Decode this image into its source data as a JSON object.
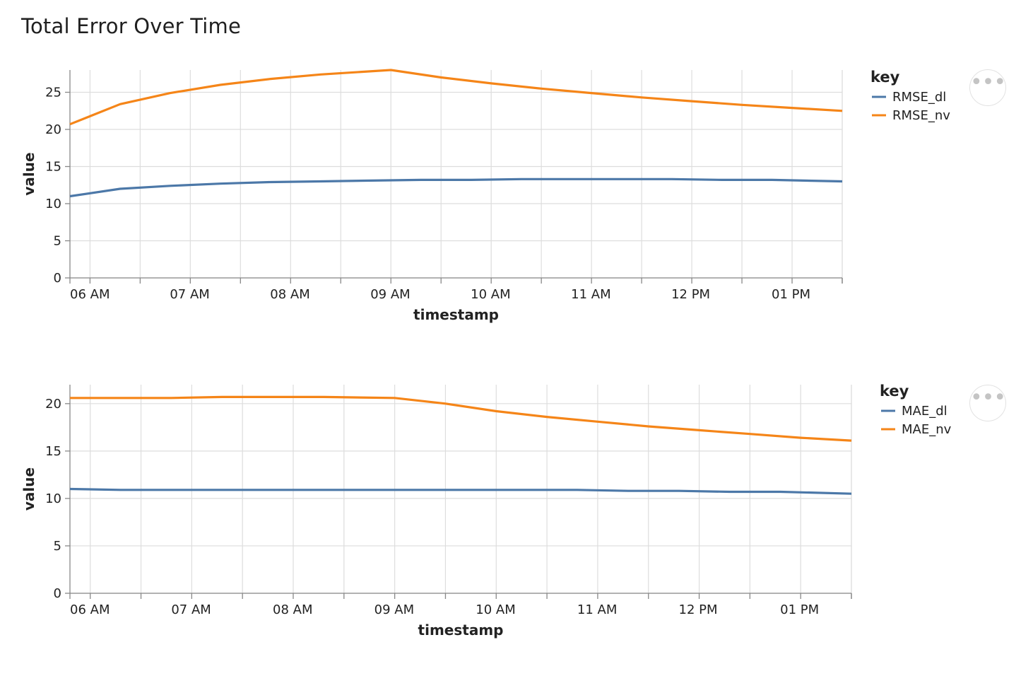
{
  "page": {
    "title": "Total Error Over Time"
  },
  "colors": {
    "dl": "#4c78a8",
    "nv": "#f58518",
    "grid": "#dddddd",
    "axis": "#888888"
  },
  "icons": {
    "menu": "more-horizontal-icon"
  },
  "chart_data": [
    {
      "type": "line",
      "xlabel": "timestamp",
      "ylabel": "value",
      "x_unit": "hour-of-day",
      "xlim": [
        5.8,
        13.5
      ],
      "ylim": [
        0,
        28
      ],
      "x_ticks": [
        6,
        7,
        8,
        9,
        10,
        11,
        12,
        13
      ],
      "x_tick_labels": [
        "06 AM",
        "07 AM",
        "08 AM",
        "09 AM",
        "10 AM",
        "11 AM",
        "12 PM",
        "01 PM"
      ],
      "y_ticks": [
        0,
        5,
        10,
        15,
        20,
        25
      ],
      "grid": true,
      "legend": {
        "title": "key",
        "placement": "right"
      },
      "series": [
        {
          "name": "RMSE_dl",
          "color": "#4c78a8",
          "x": [
            5.8,
            6.3,
            6.8,
            7.3,
            7.8,
            8.3,
            8.8,
            9.3,
            9.8,
            10.3,
            10.8,
            11.3,
            11.8,
            12.3,
            12.8,
            13.5
          ],
          "y": [
            11.0,
            12.0,
            12.4,
            12.7,
            12.9,
            13.0,
            13.1,
            13.2,
            13.2,
            13.3,
            13.3,
            13.3,
            13.3,
            13.2,
            13.2,
            13.0
          ]
        },
        {
          "name": "RMSE_nv",
          "color": "#f58518",
          "x": [
            5.8,
            6.3,
            6.8,
            7.3,
            7.8,
            8.3,
            9.0,
            9.5,
            10.0,
            10.5,
            11.0,
            11.5,
            12.0,
            12.5,
            13.0,
            13.5
          ],
          "y": [
            20.7,
            23.4,
            24.9,
            26.0,
            26.8,
            27.4,
            28.0,
            27.0,
            26.2,
            25.5,
            24.9,
            24.3,
            23.8,
            23.3,
            22.9,
            22.5
          ]
        }
      ]
    },
    {
      "type": "line",
      "xlabel": "timestamp",
      "ylabel": "value",
      "x_unit": "hour-of-day",
      "xlim": [
        5.8,
        13.5
      ],
      "ylim": [
        0,
        22
      ],
      "x_ticks": [
        6,
        7,
        8,
        9,
        10,
        11,
        12,
        13
      ],
      "x_tick_labels": [
        "06 AM",
        "07 AM",
        "08 AM",
        "09 AM",
        "10 AM",
        "11 AM",
        "12 PM",
        "01 PM"
      ],
      "y_ticks": [
        0,
        5,
        10,
        15,
        20
      ],
      "grid": true,
      "legend": {
        "title": "key",
        "placement": "right"
      },
      "series": [
        {
          "name": "MAE_dl",
          "color": "#4c78a8",
          "x": [
            5.8,
            6.3,
            6.8,
            7.3,
            7.8,
            8.3,
            8.8,
            9.3,
            9.8,
            10.3,
            10.8,
            11.3,
            11.8,
            12.3,
            12.8,
            13.5
          ],
          "y": [
            11.0,
            10.9,
            10.9,
            10.9,
            10.9,
            10.9,
            10.9,
            10.9,
            10.9,
            10.9,
            10.9,
            10.8,
            10.8,
            10.7,
            10.7,
            10.5
          ]
        },
        {
          "name": "MAE_nv",
          "color": "#f58518",
          "x": [
            5.8,
            6.3,
            6.8,
            7.3,
            7.8,
            8.3,
            9.0,
            9.5,
            10.0,
            10.5,
            11.0,
            11.5,
            12.0,
            12.5,
            13.0,
            13.5
          ],
          "y": [
            20.6,
            20.6,
            20.6,
            20.7,
            20.7,
            20.7,
            20.6,
            20.0,
            19.2,
            18.6,
            18.1,
            17.6,
            17.2,
            16.8,
            16.4,
            16.1
          ]
        }
      ]
    }
  ]
}
